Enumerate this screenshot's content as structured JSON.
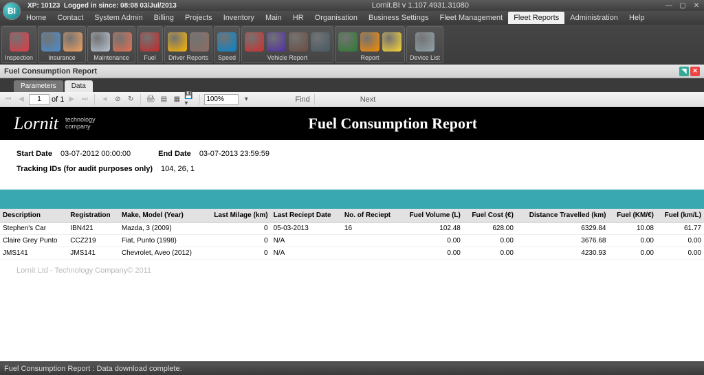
{
  "window": {
    "xp_label": "XP: 10123",
    "login_label": "Logged in since: 08:08 03/Jul/2013",
    "title": "Lornit.BI v 1.107.4931.31080"
  },
  "menu": {
    "items": [
      "Home",
      "Contact",
      "System Admin",
      "Billing",
      "Projects",
      "Inventory",
      "Main",
      "HR",
      "Organisation",
      "Business Settings",
      "Fleet Management",
      "Fleet Reports",
      "Administration",
      "Help"
    ],
    "active_index": 11
  },
  "ribbon": {
    "groups": [
      {
        "label": "Inspection",
        "colors": [
          "#e63946"
        ]
      },
      {
        "label": "Insurance",
        "colors": [
          "#4a8fd4",
          "#f4a261"
        ]
      },
      {
        "label": "Maintenance",
        "colors": [
          "#b8c5d6",
          "#e76f51"
        ]
      },
      {
        "label": "Fuel",
        "colors": [
          "#c62828"
        ]
      },
      {
        "label": "Driver Reports",
        "colors": [
          "#ffb703",
          "#8d6e63"
        ]
      },
      {
        "label": "Speed",
        "colors": [
          "#0288d1"
        ]
      },
      {
        "label": "Vehicle Report",
        "colors": [
          "#d32f2f",
          "#512da8",
          "#6d4c41",
          "#455a64"
        ]
      },
      {
        "label": "Report",
        "colors": [
          "#2e7d32",
          "#fb8c00",
          "#fdd835"
        ]
      },
      {
        "label": "Device List",
        "colors": [
          "#90a4ae"
        ]
      }
    ]
  },
  "doc": {
    "title": "Fuel Consumption Report"
  },
  "subtabs": {
    "items": [
      "Parameters",
      "Data"
    ],
    "active_index": 1
  },
  "toolbar": {
    "page_current": "1",
    "of_label": "of",
    "page_total": "1",
    "zoom": "100%",
    "find": "Find",
    "next": "Next"
  },
  "report": {
    "logo_text": "Lornit",
    "logo_sub1": "technology",
    "logo_sub2": "company",
    "title": "Fuel Consumption Report",
    "params": {
      "start_label": "Start Date",
      "start_val": "03-07-2012 00:00:00",
      "end_label": "End Date",
      "end_val": "03-07-2013 23:59:59",
      "tracking_label": "Tracking IDs (for audit purposes only)",
      "tracking_val": "104, 26, 1"
    },
    "teal_color": "#3aa8b0",
    "columns": [
      "Description",
      "Registration",
      "Make, Model (Year)",
      "Last Milage (km)",
      "Last Reciept Date",
      "No. of Reciept",
      "Fuel Volume (L)",
      "Fuel Cost (€)",
      "Distance Travelled (km)",
      "Fuel (KM/€)",
      "Fuel (km/L)"
    ],
    "col_align": [
      "l",
      "l",
      "l",
      "r",
      "l",
      "l",
      "r",
      "r",
      "r",
      "r",
      "r"
    ],
    "rows": [
      [
        "Stephen's Car",
        "IBN421",
        "Mazda, 3 (2009)",
        "0",
        "05-03-2013",
        "16",
        "102.48",
        "628.00",
        "6329.84",
        "10.08",
        "61.77"
      ],
      [
        "Claire Grey Punto",
        "CCZ219",
        "Fiat, Punto (1998)",
        "0",
        "N/A",
        "",
        "0.00",
        "0.00",
        "3676.68",
        "0.00",
        "0.00"
      ],
      [
        "JMS141",
        "JMS141",
        "Chevrolet, Aveo (2012)",
        "0",
        "N/A",
        "",
        "0.00",
        "0.00",
        "4230.93",
        "0.00",
        "0.00"
      ]
    ],
    "footer": "Lornit Ltd - Technology Company© 2011"
  },
  "status": {
    "text": "Fuel Consumption Report : Data download complete."
  }
}
